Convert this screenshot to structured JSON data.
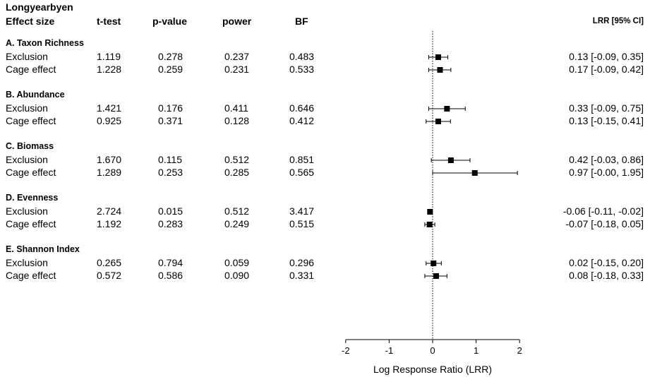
{
  "header": {
    "site": "Longyearbyen",
    "effect_size": "Effect size",
    "ttest": "t-test",
    "pvalue": "p-value",
    "power": "power",
    "bf": "BF",
    "lrr_ci": "LRR [95% CI]"
  },
  "chart_data": {
    "type": "forest",
    "xlabel": "Log Response Ratio (LRR)",
    "xlim": [
      -2,
      2
    ],
    "xticks": [
      "-2",
      "-1",
      "0",
      "1",
      "2"
    ],
    "reference_line": 0,
    "groups": [
      {
        "title": "A. Taxon Richness",
        "rows": [
          {
            "label": "Exclusion",
            "ttest": "1.119",
            "pvalue": "0.278",
            "power": "0.237",
            "bf": "0.483",
            "lrr": 0.13,
            "lo": -0.09,
            "hi": 0.35,
            "ci_text": "0.13 [-0.09,  0.35]"
          },
          {
            "label": "Cage effect",
            "ttest": "1.228",
            "pvalue": "0.259",
            "power": "0.231",
            "bf": "0.533",
            "lrr": 0.17,
            "lo": -0.09,
            "hi": 0.42,
            "ci_text": "0.17 [-0.09,  0.42]"
          }
        ]
      },
      {
        "title": "B. Abundance",
        "rows": [
          {
            "label": "Exclusion",
            "ttest": "1.421",
            "pvalue": "0.176",
            "power": "0.411",
            "bf": "0.646",
            "lrr": 0.33,
            "lo": -0.09,
            "hi": 0.75,
            "ci_text": "0.33 [-0.09,  0.75]"
          },
          {
            "label": "Cage effect",
            "ttest": "0.925",
            "pvalue": "0.371",
            "power": "0.128",
            "bf": "0.412",
            "lrr": 0.13,
            "lo": -0.15,
            "hi": 0.41,
            "ci_text": "0.13 [-0.15,  0.41]"
          }
        ]
      },
      {
        "title": "C. Biomass",
        "rows": [
          {
            "label": "Exclusion",
            "ttest": "1.670",
            "pvalue": "0.115",
            "power": "0.512",
            "bf": "0.851",
            "lrr": 0.42,
            "lo": -0.03,
            "hi": 0.86,
            "ci_text": "0.42 [-0.03,  0.86]"
          },
          {
            "label": "Cage effect",
            "ttest": "1.289",
            "pvalue": "0.253",
            "power": "0.285",
            "bf": "0.565",
            "lrr": 0.97,
            "lo": -0.0,
            "hi": 1.95,
            "ci_text": "0.97 [-0.00,  1.95]"
          }
        ]
      },
      {
        "title": "D. Evenness",
        "rows": [
          {
            "label": "Exclusion",
            "ttest": "2.724",
            "pvalue": "0.015",
            "power": "0.512",
            "bf": "3.417",
            "lrr": -0.06,
            "lo": -0.11,
            "hi": -0.02,
            "ci_text": "-0.06 [-0.11, -0.02]"
          },
          {
            "label": "Cage effect",
            "ttest": "1.192",
            "pvalue": "0.283",
            "power": "0.249",
            "bf": "0.515",
            "lrr": -0.07,
            "lo": -0.18,
            "hi": 0.05,
            "ci_text": "-0.07 [-0.18,  0.05]"
          }
        ]
      },
      {
        "title": "E. Shannon Index",
        "rows": [
          {
            "label": "Exclusion",
            "ttest": "0.265",
            "pvalue": "0.794",
            "power": "0.059",
            "bf": "0.296",
            "lrr": 0.02,
            "lo": -0.15,
            "hi": 0.2,
            "ci_text": "0.02 [-0.15,  0.20]"
          },
          {
            "label": "Cage effect",
            "ttest": "0.572",
            "pvalue": "0.586",
            "power": "0.090",
            "bf": "0.331",
            "lrr": 0.08,
            "lo": -0.18,
            "hi": 0.33,
            "ci_text": "0.08 [-0.18,  0.33]"
          }
        ]
      }
    ]
  }
}
